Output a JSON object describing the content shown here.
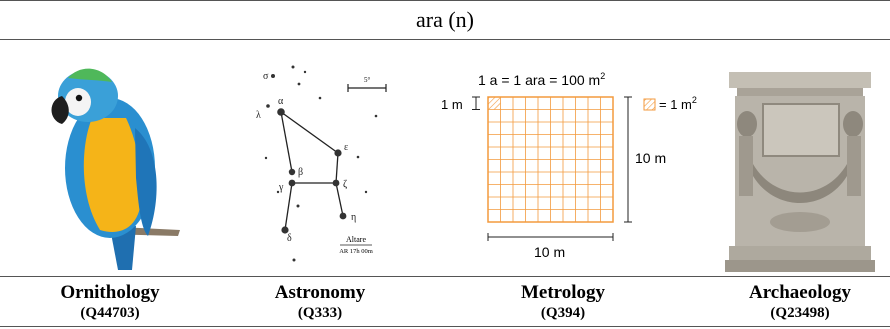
{
  "title": "ara (n)",
  "columns": [
    {
      "field": "Ornithology",
      "qid": "(Q44703)"
    },
    {
      "field": "Astronomy",
      "qid": "(Q333)"
    },
    {
      "field": "Metrology",
      "qid": "(Q394)"
    },
    {
      "field": "Archaeology",
      "qid": "(Q23498)"
    }
  ],
  "astronomy": {
    "scale": "5°",
    "constellation": "Altare",
    "coords": "AR 17h 00m",
    "stars": {
      "sigma": "σ",
      "lambda": "λ",
      "alpha": "α",
      "epsilon": "ε",
      "beta": "β",
      "gamma": "γ",
      "zeta": "ζ",
      "eta": "η",
      "delta": "δ"
    }
  },
  "metrology": {
    "equation_text": "1 a = 1 ara = 100 m",
    "equation_sup": "2",
    "left_label": "1 m",
    "right_label": "10 m",
    "bottom_label": "10 m",
    "legend_text": "= 1 m",
    "legend_sup": "2",
    "grid_color": "#f39a3d"
  },
  "colors": {
    "parrot_blue": "#2a8fd0",
    "parrot_yellow": "#f5b418",
    "altar_stone": "#b9b4aa"
  }
}
